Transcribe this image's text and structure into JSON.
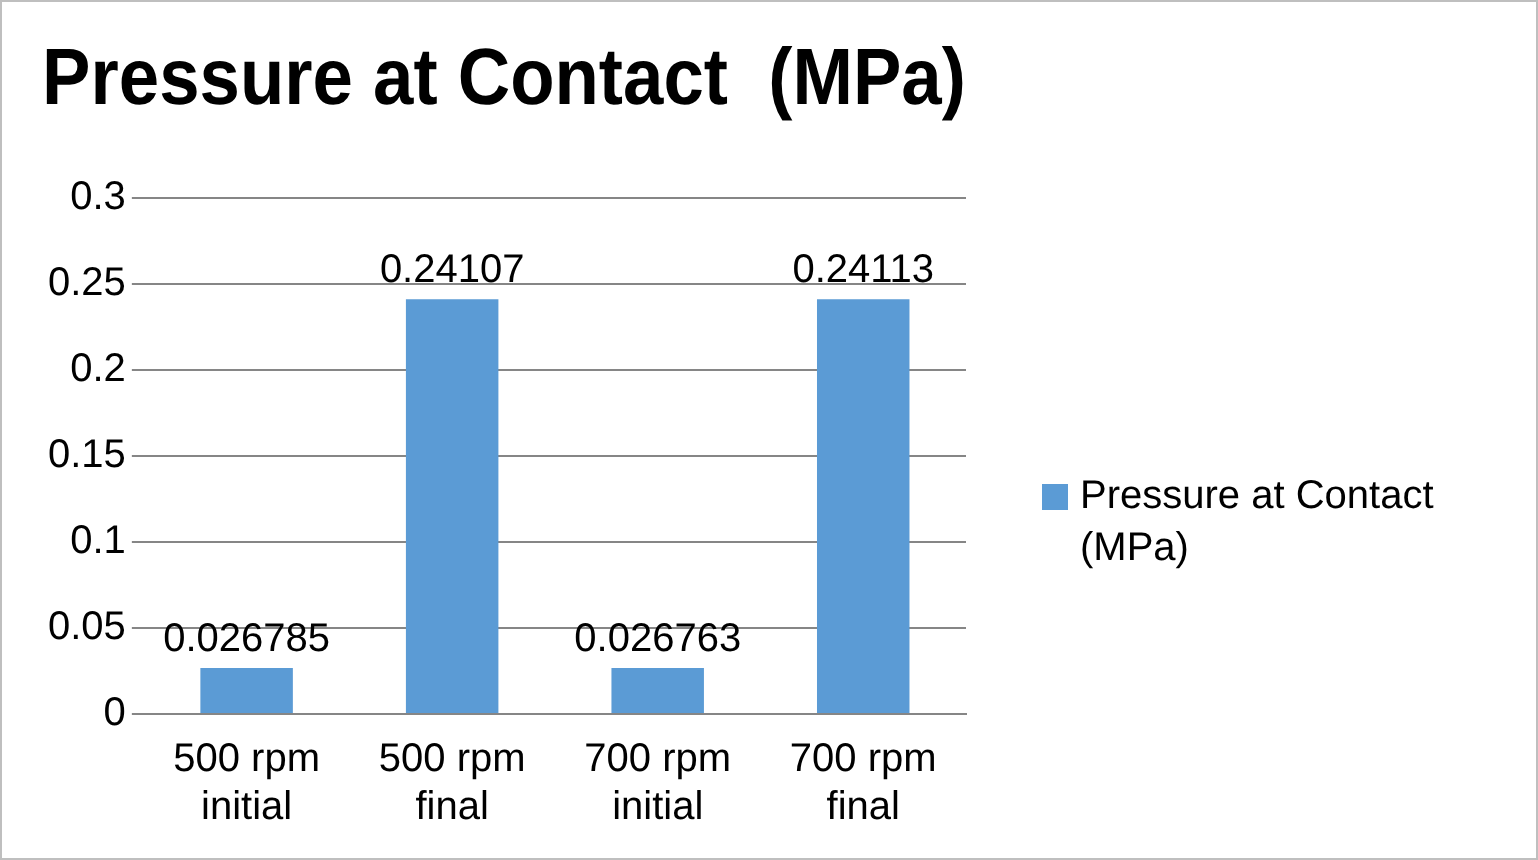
{
  "chart_data": {
    "type": "bar",
    "title": "Pressure at Contact  (MPa)",
    "categories": [
      "500 rpm initial",
      "500 rpm final",
      "700 rpm initial",
      "700 rpm final"
    ],
    "series": [
      {
        "name": "Pressure at Contact (MPa)",
        "color": "#5b9bd5",
        "values": [
          0.026785,
          0.24107,
          0.026763,
          0.24113
        ]
      }
    ],
    "ylim": [
      0,
      0.3
    ],
    "yticks": [
      0,
      0.05,
      0.1,
      0.15,
      0.2,
      0.25,
      0.3
    ],
    "grid": "y",
    "legend": "right",
    "data_labels": true
  }
}
